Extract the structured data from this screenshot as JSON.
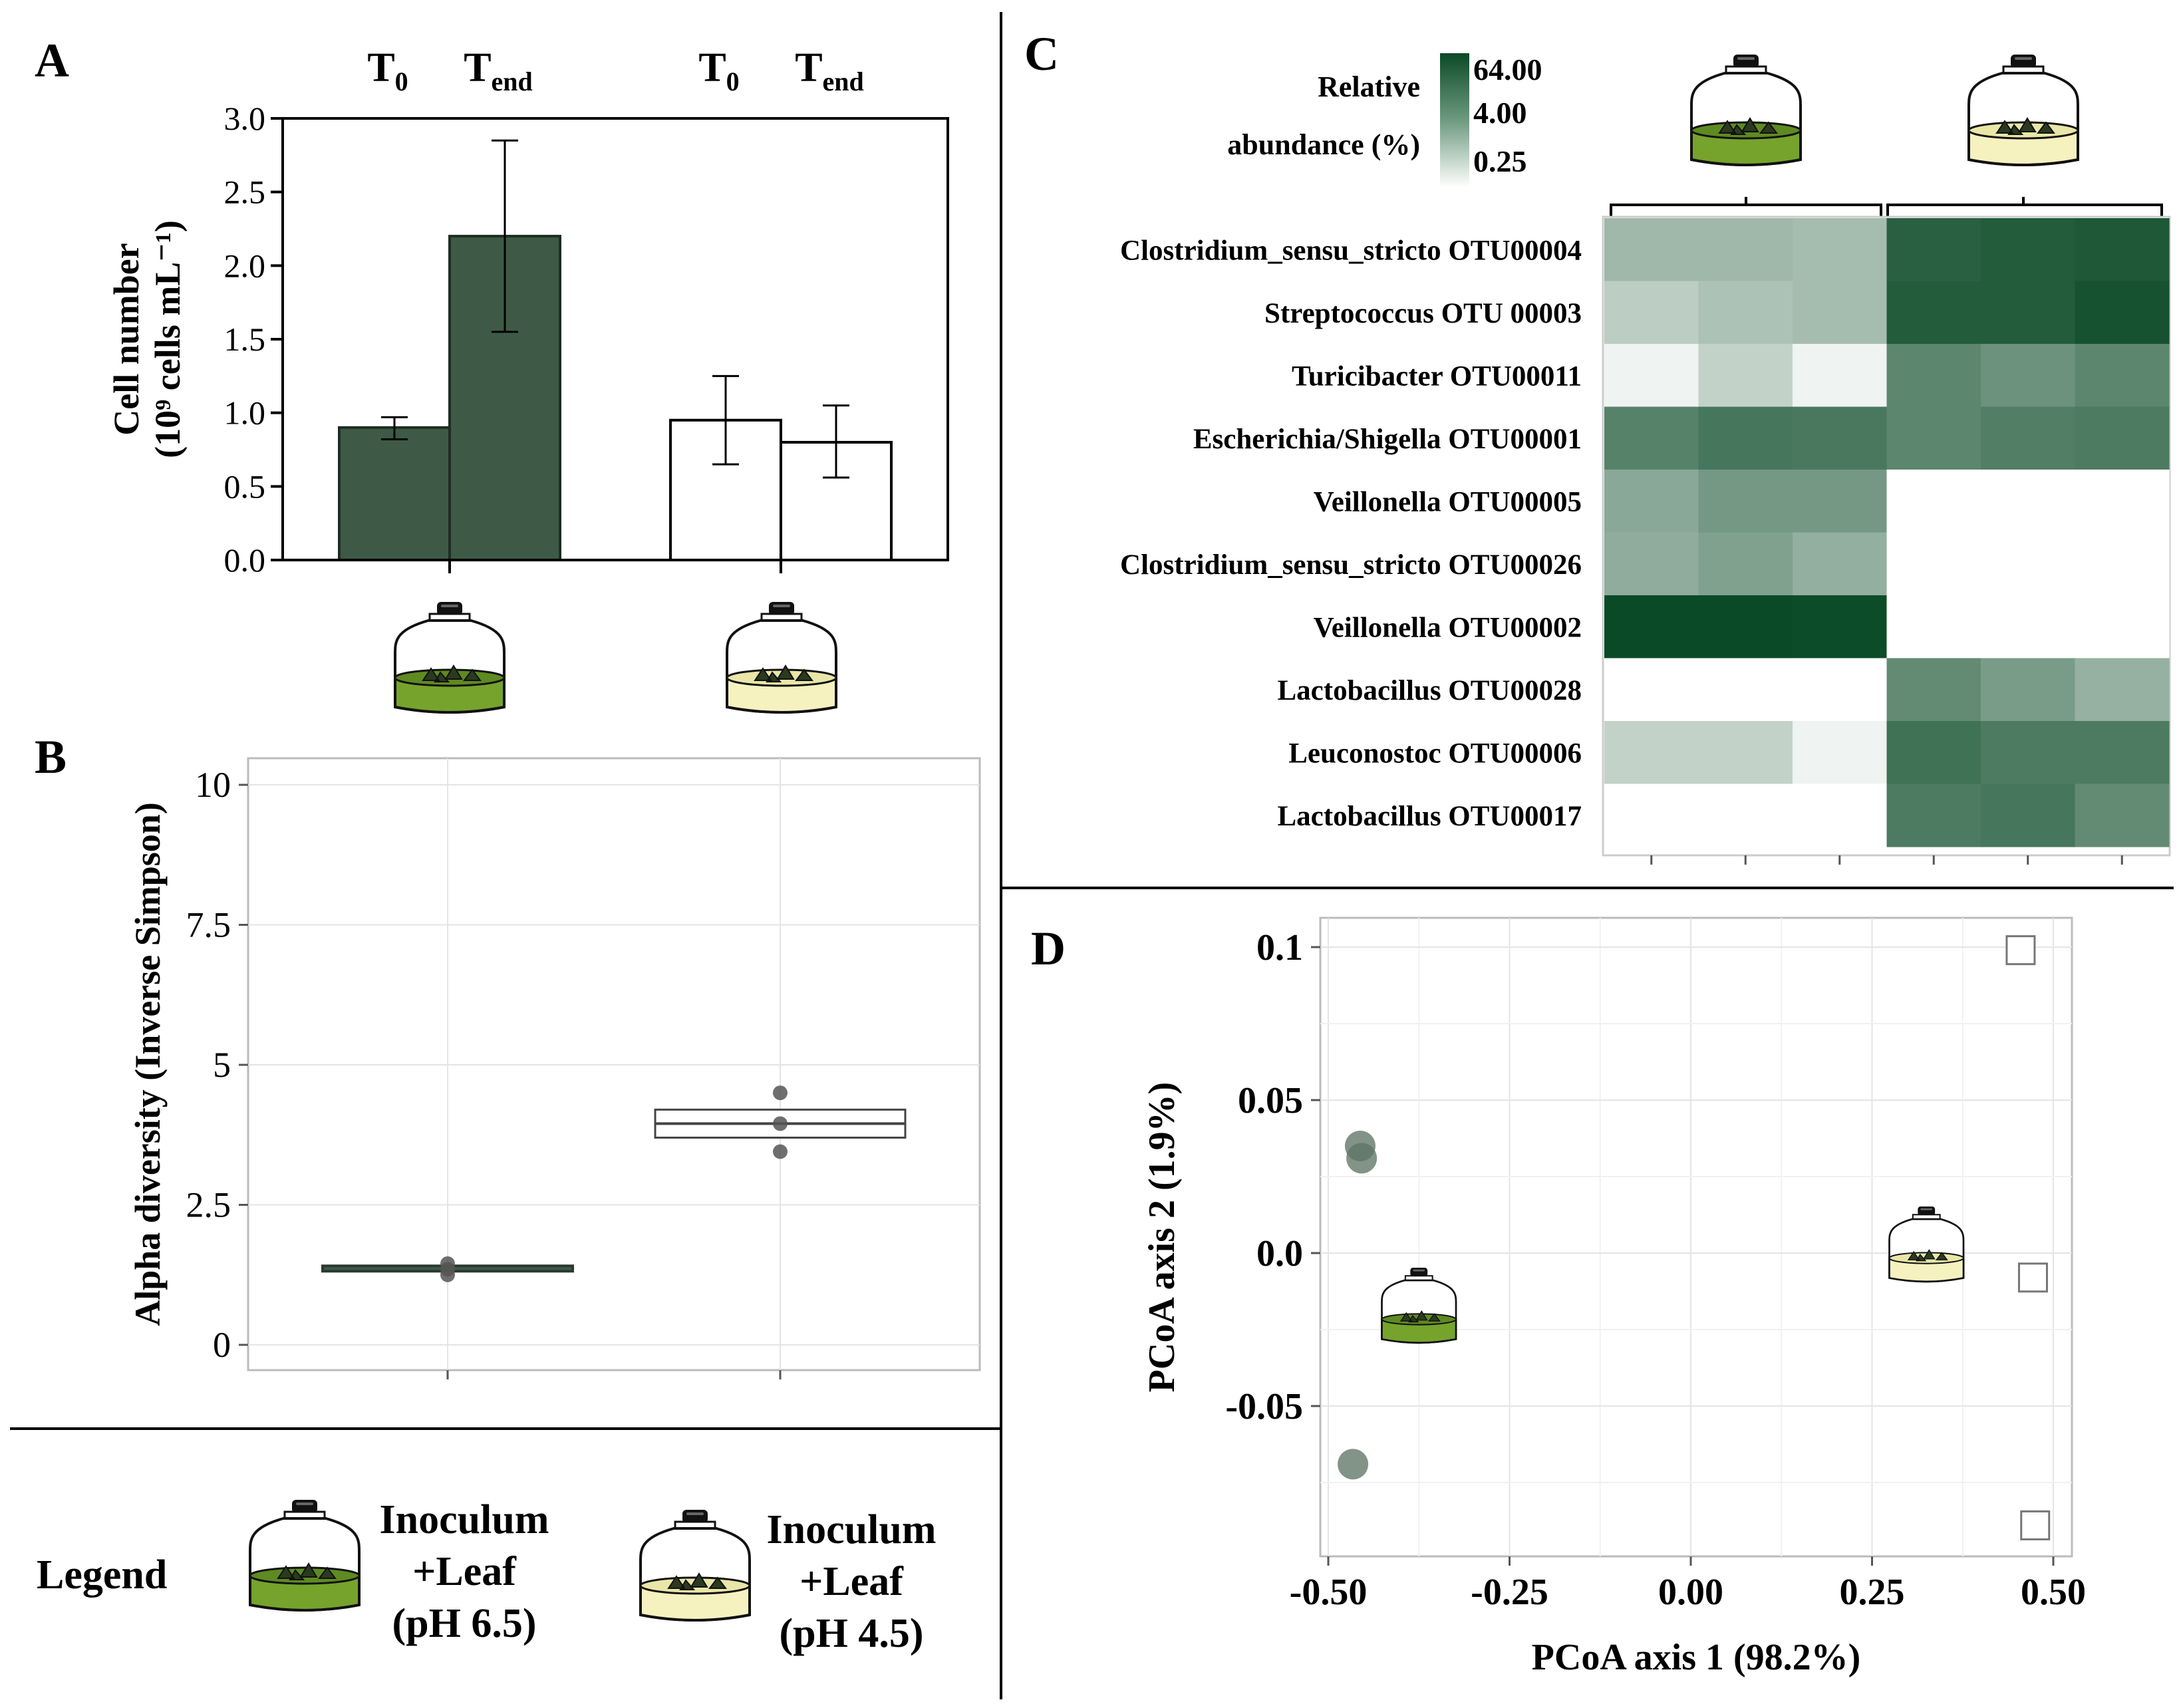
{
  "colors": {
    "dark": "#3e5a47",
    "darkStroke": "#1e2d22",
    "heatMax": "#0b4a26",
    "jarGreen": "#76a32c",
    "jarGreenDark": "#4f7a1c",
    "jarCream": "#f5f2c0",
    "grid": "#e4e4e4",
    "pointGreen": "#5f7565"
  },
  "panels": {
    "A": "A",
    "B": "B",
    "C": "C",
    "D": "D"
  },
  "legend": {
    "title": "Legend",
    "item1": {
      "line1": "Inoculum",
      "line2": "+Leaf",
      "line3": "(pH 6.5)",
      "jar": "jar-green-icon"
    },
    "item2": {
      "line1": "Inoculum",
      "line2": "+Leaf",
      "line3": "(pH 4.5)",
      "jar": "jar-cream-icon"
    }
  },
  "chart_data": [
    {
      "id": "A",
      "type": "bar",
      "ylabel_line1": "Cell number",
      "ylabel_line2": "(10⁹ cells mL⁻¹)",
      "ylim": [
        0,
        3.0
      ],
      "yticks": [
        "0.0",
        "0.5",
        "1.0",
        "1.5",
        "2.0",
        "2.5",
        "3.0"
      ],
      "groups": [
        {
          "name": "Inoculum +Leaf (pH 6.5)",
          "fill": "dark",
          "bars": [
            {
              "label_main": "T",
              "label_sub": "0",
              "value": 0.9,
              "err_low": 0.82,
              "err_high": 0.97
            },
            {
              "label_main": "T",
              "label_sub": "end",
              "value": 2.2,
              "err_low": 1.55,
              "err_high": 2.85
            }
          ]
        },
        {
          "name": "Inoculum +Leaf (pH 4.5)",
          "fill": "white",
          "bars": [
            {
              "label_main": "T",
              "label_sub": "0",
              "value": 0.95,
              "err_low": 0.65,
              "err_high": 1.25
            },
            {
              "label_main": "T",
              "label_sub": "end",
              "value": 0.8,
              "err_low": 0.56,
              "err_high": 1.05
            }
          ]
        }
      ]
    },
    {
      "id": "B",
      "type": "box",
      "ylabel": "Alpha diversity (Inverse Simpson)",
      "ylim": [
        0,
        10
      ],
      "yticks": [
        "0",
        "2.5",
        "5",
        "7.5",
        "10"
      ],
      "groups": [
        {
          "name": "Inoculum +Leaf (pH 6.5)",
          "q1": 1.35,
          "median": 1.38,
          "q3": 1.41,
          "points": [
            1.25,
            1.35,
            1.45
          ]
        },
        {
          "name": "Inoculum +Leaf (pH 4.5)",
          "q1": 3.7,
          "median": 3.95,
          "q3": 4.2,
          "points": [
            3.45,
            3.95,
            4.5
          ]
        }
      ]
    },
    {
      "id": "C",
      "type": "heatmap",
      "colorbar_title_line1": "Relative",
      "colorbar_title_line2": "abundance (%)",
      "colorbar_ticks": [
        "64.00",
        "4.00",
        "0.25"
      ],
      "rows": [
        {
          "genus": "Clostridium_sensu_stricto",
          "otu": "OTU00004",
          "values": [
            0.6,
            0.6,
            0.5,
            25,
            30,
            35
          ]
        },
        {
          "genus": "Streptococcus",
          "otu": "OTU 00003",
          "values": [
            0.25,
            0.4,
            0.5,
            30,
            30,
            45
          ]
        },
        {
          "genus": "Turicibacter",
          "otu": "OTU00011",
          "values": [
            0.05,
            0.2,
            0.05,
            5,
            3,
            5
          ]
        },
        {
          "genus": "Escherichia/Shigella",
          "otu": "OTU00001",
          "values": [
            6,
            10,
            9,
            5,
            7,
            8
          ]
        },
        {
          "genus": "Veillonella",
          "otu": "OTU00005",
          "values": [
            1.2,
            2.4,
            2.4,
            0,
            0,
            0
          ]
        },
        {
          "genus": "Clostridium_sensu_stricto",
          "otu": "OTU00026",
          "values": [
            1.0,
            1.6,
            0.9,
            0,
            0,
            0
          ]
        },
        {
          "genus": "Veillonella",
          "otu": "OTU00002",
          "values": [
            64,
            64,
            60,
            0,
            0,
            0
          ]
        },
        {
          "genus": "Lactobacillus",
          "otu": "OTU00028",
          "values": [
            0,
            0,
            0,
            4,
            2,
            0.8
          ]
        },
        {
          "genus": "Leuconostoc",
          "otu": "OTU00006",
          "values": [
            0.2,
            0.2,
            0.05,
            12,
            8,
            8
          ]
        },
        {
          "genus": "Lactobacillus",
          "otu": "OTU00017",
          "values": [
            0,
            0,
            0,
            8,
            10,
            4
          ]
        }
      ],
      "column_groups": [
        "Inoculum +Leaf (pH 6.5)",
        "Inoculum +Leaf (pH 4.5)"
      ]
    },
    {
      "id": "D",
      "type": "scatter",
      "xlabel": "PCoA axis 1 (98.2%)",
      "ylabel": "PCoA axis 2 (1.9%)",
      "xlim": [
        -0.5,
        0.5
      ],
      "ylim": [
        -0.095,
        0.11
      ],
      "xticks": [
        "-0.50",
        "-0.25",
        "0.00",
        "0.25",
        "0.50"
      ],
      "yticks": [
        "-0.05",
        "0.0",
        "0.05",
        "0.1"
      ],
      "series": [
        {
          "name": "Inoculum +Leaf (pH 6.5)",
          "marker": "circle",
          "points": [
            [
              -0.456,
              0.035
            ],
            [
              -0.454,
              0.031
            ],
            [
              -0.466,
              -0.069
            ]
          ]
        },
        {
          "name": "Inoculum +Leaf (pH 4.5)",
          "marker": "square",
          "points": [
            [
              0.455,
              0.099
            ],
            [
              0.472,
              -0.008
            ],
            [
              0.475,
              -0.089
            ]
          ]
        }
      ],
      "annotations": [
        {
          "jar": "green",
          "x": -0.375,
          "y": -0.02
        },
        {
          "jar": "cream",
          "x": 0.325,
          "y": 0.0
        }
      ]
    }
  ]
}
